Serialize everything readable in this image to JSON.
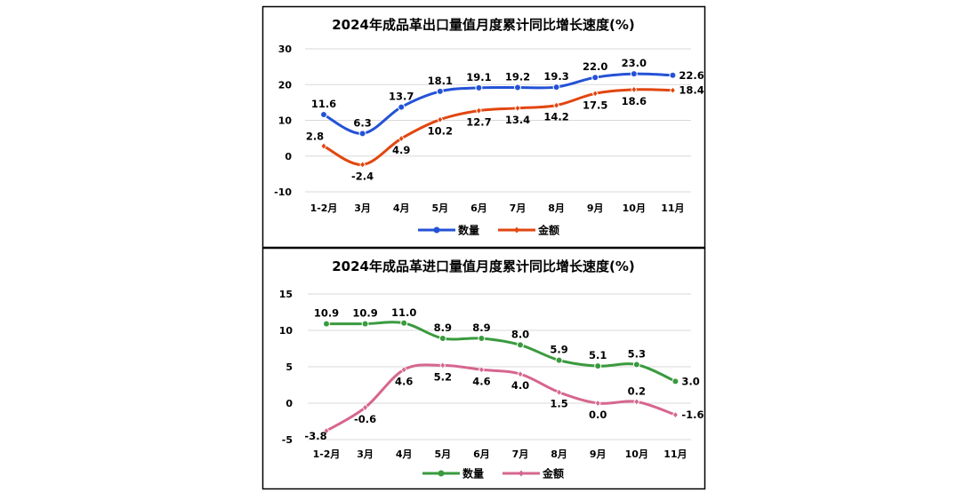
{
  "chart_data": [
    {
      "type": "line",
      "title": "2024年成品革出口量值月度累计同比增长速度(%)",
      "categories": [
        "1-2月",
        "3月",
        "4月",
        "5月",
        "6月",
        "7月",
        "8月",
        "9月",
        "10月",
        "11月"
      ],
      "ylim": [
        -10,
        30
      ],
      "yticks": [
        30,
        20,
        10,
        0,
        -10
      ],
      "grid": true,
      "legend_placement": "bottom",
      "series": [
        {
          "name": "数量",
          "color": "#2452D6",
          "marker": "circle",
          "values": [
            11.6,
            6.3,
            13.7,
            18.1,
            19.1,
            19.2,
            19.3,
            22.0,
            23.0,
            22.6
          ]
        },
        {
          "name": "金额",
          "color": "#E2460F",
          "marker": "diamond",
          "values": [
            2.8,
            -2.4,
            4.9,
            10.2,
            12.7,
            13.4,
            14.2,
            17.5,
            18.6,
            18.4
          ]
        }
      ]
    },
    {
      "type": "line",
      "title": "2024年成品革进口量值月度累计同比增长速度(%)",
      "categories": [
        "1-2月",
        "3月",
        "4月",
        "5月",
        "6月",
        "7月",
        "8月",
        "9月",
        "10月",
        "11月"
      ],
      "ylim": [
        -5,
        15
      ],
      "yticks": [
        15,
        10,
        5,
        0,
        -5
      ],
      "grid": true,
      "legend_placement": "bottom",
      "series": [
        {
          "name": "数量",
          "color": "#3A9A3E",
          "marker": "circle",
          "values": [
            10.9,
            10.9,
            11.0,
            8.9,
            8.9,
            8.0,
            5.9,
            5.1,
            5.3,
            3.0
          ]
        },
        {
          "name": "金额",
          "color": "#D6668F",
          "marker": "diamond",
          "values": [
            -3.8,
            -0.6,
            4.6,
            5.2,
            4.6,
            4.0,
            1.5,
            0.0,
            0.2,
            -1.6
          ]
        }
      ]
    }
  ]
}
